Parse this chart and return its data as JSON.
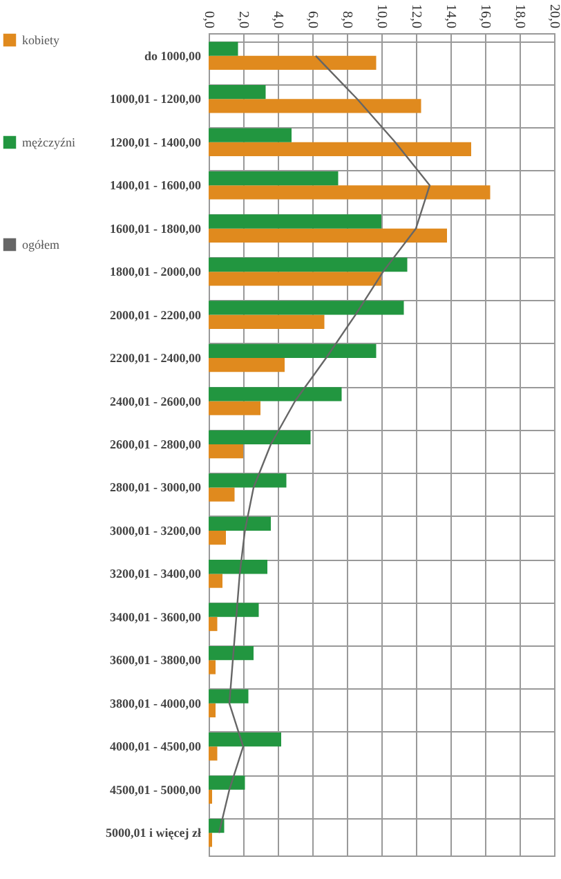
{
  "chart_data": {
    "type": "bar",
    "orientation": "horizontal",
    "categories": [
      "do 1000,00",
      "1000,01 - 1200,00",
      "1200,01 - 1400,00",
      "1400,01 - 1600,00",
      "1600,01 - 1800,00",
      "1800,01 - 2000,00",
      "2000,01 - 2200,00",
      "2200,01 - 2400,00",
      "2400,01 - 2600,00",
      "2600,01 - 2800,00",
      "2800,01 - 3000,00",
      "3000,01 - 3200,00",
      "3200,01 - 3400,00",
      "3400,01 - 3600,00",
      "3600,01 - 3800,00",
      "3800,01 - 4000,00",
      "4000,01 - 4500,00",
      "4500,01 - 5000,00",
      "5000,01 i  więcej zł"
    ],
    "series": [
      {
        "name": "kobiety",
        "color": "#e08a1e",
        "values": [
          9.7,
          12.3,
          15.2,
          16.3,
          13.8,
          10.0,
          6.7,
          4.4,
          3.0,
          2.0,
          1.5,
          1.0,
          0.8,
          0.5,
          0.4,
          0.4,
          0.5,
          0.2,
          0.2
        ]
      },
      {
        "name": "mężczyźni",
        "color": "#229640",
        "values": [
          1.7,
          3.3,
          4.8,
          7.5,
          10.0,
          11.5,
          11.3,
          9.7,
          7.7,
          5.9,
          4.5,
          3.6,
          3.4,
          2.9,
          2.6,
          2.3,
          4.2,
          2.1,
          0.9
        ]
      },
      {
        "name": "ogółem",
        "type": "line",
        "color": "#666666",
        "values": [
          6.2,
          8.6,
          10.8,
          12.8,
          12.0,
          10.1,
          8.5,
          6.8,
          5.0,
          3.6,
          2.6,
          2.1,
          1.8,
          1.6,
          1.4,
          1.2,
          2.0,
          1.2,
          0.6
        ]
      }
    ],
    "xlim": [
      0,
      20
    ],
    "xticks": [
      {
        "value": 0,
        "label": "0,0"
      },
      {
        "value": 2,
        "label": "2,0"
      },
      {
        "value": 4,
        "label": "4,0"
      },
      {
        "value": 6,
        "label": "6,0"
      },
      {
        "value": 8,
        "label": "8,0"
      },
      {
        "value": 10,
        "label": "10,0"
      },
      {
        "value": 12,
        "label": "12,0"
      },
      {
        "value": 14,
        "label": "14,0"
      },
      {
        "value": 16,
        "label": "16,0"
      },
      {
        "value": 18,
        "label": "18,0"
      },
      {
        "value": 20,
        "label": "20,0"
      }
    ],
    "grid": true,
    "legend": "left"
  }
}
